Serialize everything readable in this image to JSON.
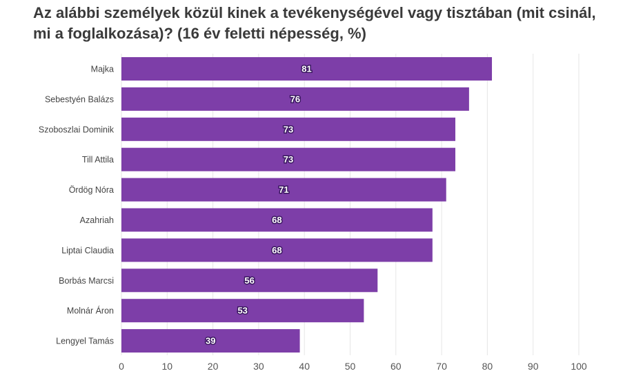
{
  "chart_data": {
    "type": "bar",
    "orientation": "horizontal",
    "title": "Az alábbi személyek közül kinek a tevékenységével vagy tisztában (mit csinál, mi a foglalkozása)? (16 év feletti népesség, %)",
    "categories": [
      "Majka",
      "Sebestyén Balázs",
      "Szoboszlai Dominik",
      "Till Attila",
      "Ördög Nóra",
      "Azahriah",
      "Liptai Claudia",
      "Borbás Marcsi",
      "Molnár Áron",
      "Lengyel Tamás"
    ],
    "values": [
      81,
      76,
      73,
      73,
      71,
      68,
      68,
      56,
      53,
      39
    ],
    "xlim": [
      0,
      100
    ],
    "xticks": [
      0,
      10,
      20,
      30,
      40,
      50,
      60,
      70,
      80,
      90,
      100
    ],
    "grid": true,
    "bar_color": "#7d3ea8"
  }
}
